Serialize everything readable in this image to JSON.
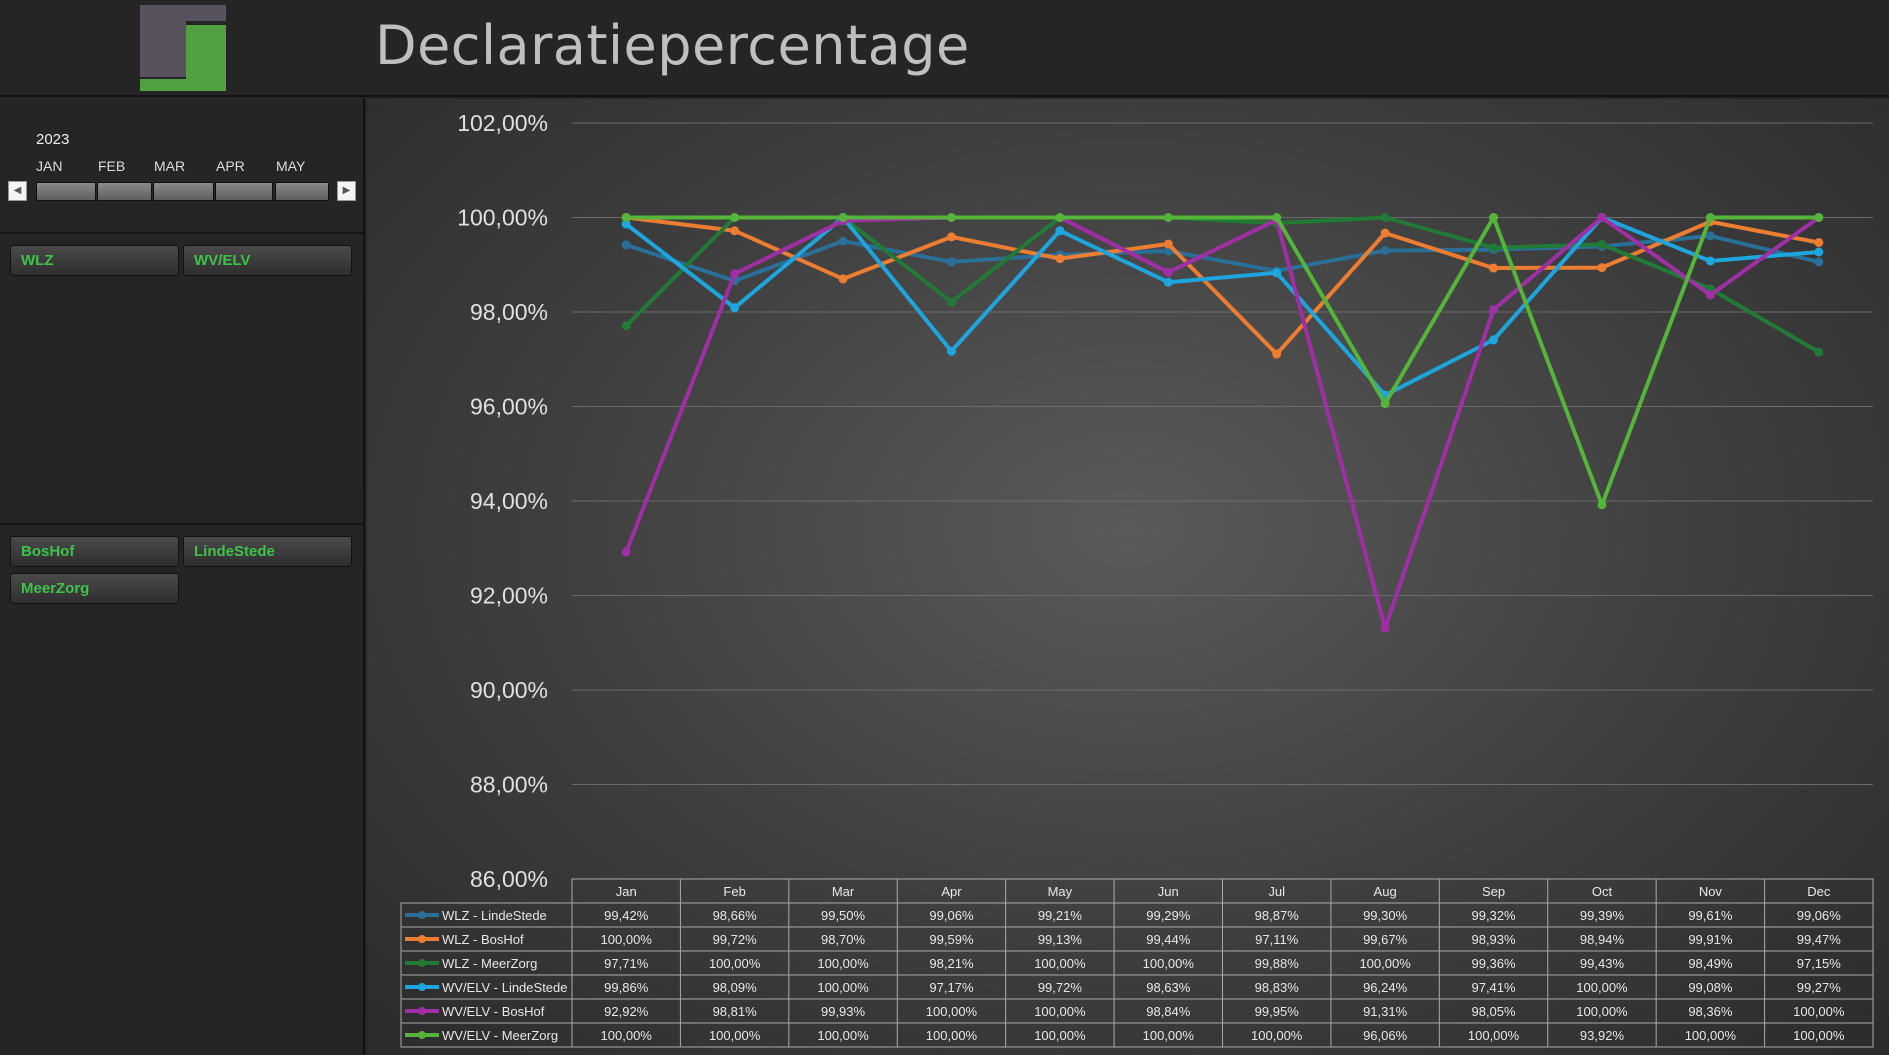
{
  "header": {
    "title": "Declaratiepercentage"
  },
  "timeline": {
    "year": "2023",
    "months": [
      "JAN",
      "FEB",
      "MAR",
      "APR",
      "MAY"
    ],
    "prev_icon": "caret-left-icon",
    "next_icon": "caret-right-icon"
  },
  "slicers": {
    "regelingen": [
      "WLZ",
      "WV/ELV"
    ],
    "locaties": [
      "BosHof",
      "LindeStede",
      "MeerZorg"
    ]
  },
  "chart_data": {
    "type": "line",
    "title": "Declaratiepercentage",
    "categories": [
      "Jan",
      "Feb",
      "Mar",
      "Apr",
      "May",
      "Jun",
      "Jul",
      "Aug",
      "Sep",
      "Oct",
      "Nov",
      "Dec"
    ],
    "ylim": [
      86,
      102
    ],
    "yticks": [
      "86,00%",
      "88,00%",
      "90,00%",
      "92,00%",
      "94,00%",
      "96,00%",
      "98,00%",
      "100,00%",
      "102,00%"
    ],
    "grid": true,
    "legend": "data-table-bottom",
    "series": [
      {
        "name": "WLZ - LindeStede",
        "color": "#2a6f97",
        "values": [
          99.42,
          98.66,
          99.5,
          99.06,
          99.21,
          99.29,
          98.87,
          99.3,
          99.32,
          99.39,
          99.61,
          99.06
        ],
        "labels": [
          "99,42%",
          "98,66%",
          "99,50%",
          "99,06%",
          "99,21%",
          "99,29%",
          "98,87%",
          "99,30%",
          "99,32%",
          "99,39%",
          "99,61%",
          "99,06%"
        ]
      },
      {
        "name": "WLZ - BosHof",
        "color": "#ed7d31",
        "values": [
          100,
          99.72,
          98.7,
          99.59,
          99.13,
          99.44,
          97.11,
          99.67,
          98.93,
          98.94,
          99.91,
          99.47
        ],
        "labels": [
          "100,00%",
          "99,72%",
          "98,70%",
          "99,59%",
          "99,13%",
          "99,44%",
          "97,11%",
          "99,67%",
          "98,93%",
          "98,94%",
          "99,91%",
          "99,47%"
        ]
      },
      {
        "name": "WLZ - MeerZorg",
        "color": "#217a35",
        "values": [
          97.71,
          100,
          100,
          98.21,
          100,
          100,
          99.88,
          100,
          99.36,
          99.43,
          98.49,
          97.15
        ],
        "labels": [
          "97,71%",
          "100,00%",
          "100,00%",
          "98,21%",
          "100,00%",
          "100,00%",
          "99,88%",
          "100,00%",
          "99,36%",
          "99,43%",
          "98,49%",
          "97,15%"
        ]
      },
      {
        "name": "WV/ELV - LindeStede",
        "color": "#1ea5de",
        "values": [
          99.86,
          98.09,
          100,
          97.17,
          99.72,
          98.63,
          98.83,
          96.24,
          97.41,
          100,
          99.08,
          99.27
        ],
        "labels": [
          "99,86%",
          "98,09%",
          "100,00%",
          "97,17%",
          "99,72%",
          "98,63%",
          "98,83%",
          "96,24%",
          "97,41%",
          "100,00%",
          "99,08%",
          "99,27%"
        ]
      },
      {
        "name": "WV/ELV - BosHof",
        "color": "#a02fa6",
        "values": [
          92.92,
          98.81,
          99.93,
          100,
          100,
          98.84,
          99.95,
          91.31,
          98.05,
          100,
          98.36,
          100
        ],
        "labels": [
          "92,92%",
          "98,81%",
          "99,93%",
          "100,00%",
          "100,00%",
          "98,84%",
          "99,95%",
          "91,31%",
          "98,05%",
          "100,00%",
          "98,36%",
          "100,00%"
        ]
      },
      {
        "name": "WV/ELV - MeerZorg",
        "color": "#55b43a",
        "values": [
          100,
          100,
          100,
          100,
          100,
          100,
          100,
          96.06,
          100,
          93.92,
          100,
          100
        ],
        "labels": [
          "100,00%",
          "100,00%",
          "100,00%",
          "100,00%",
          "100,00%",
          "100,00%",
          "100,00%",
          "96,06%",
          "100,00%",
          "93,92%",
          "100,00%",
          "100,00%"
        ]
      }
    ]
  }
}
